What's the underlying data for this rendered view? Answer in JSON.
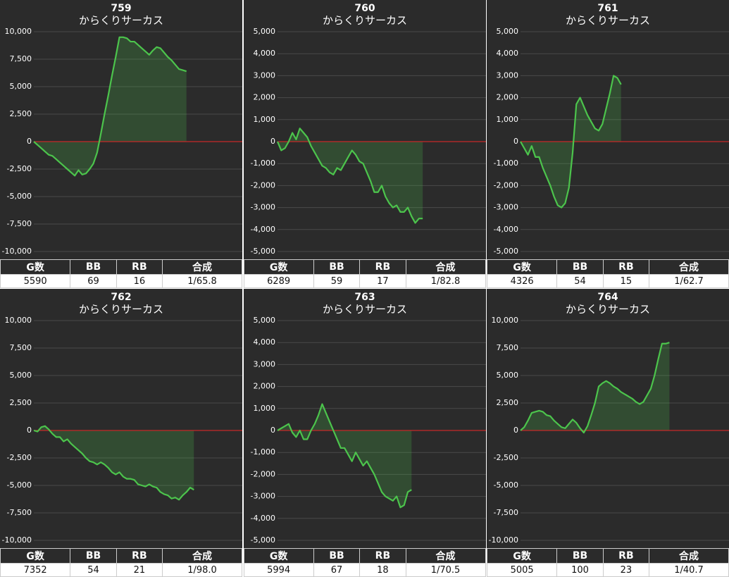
{
  "chart_data": [
    {
      "type": "line",
      "title": "759",
      "subtitle": "からくりサーカス",
      "color": "#4cc44c",
      "grid": true,
      "values": [
        0,
        -300,
        -600,
        -900,
        -1200,
        -1300,
        -1600,
        -1900,
        -2200,
        -2500,
        -2800,
        -3100,
        -2600,
        -3000,
        -2900,
        -2500,
        -2000,
        -1000,
        700,
        2500,
        4200,
        6000,
        7700,
        9500,
        9500,
        9400,
        9100,
        9100,
        8800,
        8500,
        8200,
        7900,
        8300,
        8600,
        8500,
        8100,
        7700,
        7400,
        7000,
        6600,
        6500,
        6400
      ],
      "ylim": [
        -10000,
        10000
      ],
      "yticks": [
        {
          "value": -10000,
          "label": "-10,000"
        },
        {
          "value": -7500,
          "label": "-7,500"
        },
        {
          "value": -5000,
          "label": "-5,000"
        },
        {
          "value": -2500,
          "label": "-2,500"
        },
        0,
        {
          "value": 2500,
          "label": "2,500"
        },
        {
          "value": 5000,
          "label": "5,000"
        },
        {
          "value": 7500,
          "label": "7,500"
        },
        {
          "value": 10000,
          "label": "10,000"
        }
      ]
    },
    {
      "type": "line",
      "title": "760",
      "subtitle": "からくりサーカス",
      "color": "#4cc44c",
      "grid": true,
      "values": [
        0,
        -400,
        -300,
        0,
        400,
        100,
        600,
        400,
        200,
        -200,
        -500,
        -800,
        -1100,
        -1200,
        -1400,
        -1500,
        -1200,
        -1300,
        -1000,
        -700,
        -400,
        -600,
        -900,
        -1000,
        -1400,
        -1800,
        -2300,
        -2300,
        -2000,
        -2500,
        -2800,
        -3000,
        -2900,
        -3200,
        -3200,
        -3000,
        -3400,
        -3700,
        -3500,
        -3500
      ],
      "ylim": [
        -5000,
        5000
      ],
      "yticks": [
        {
          "value": -5000,
          "label": "-5,000"
        },
        {
          "value": -4000,
          "label": "-4,000"
        },
        {
          "value": -3000,
          "label": "-3,000"
        },
        {
          "value": -2000,
          "label": "-2,000"
        },
        {
          "value": -1000,
          "label": "-1,000"
        },
        0,
        {
          "value": 1000,
          "label": "1,000"
        },
        {
          "value": 2000,
          "label": "2,000"
        },
        {
          "value": 3000,
          "label": "3,000"
        },
        {
          "value": 4000,
          "label": "4,000"
        },
        {
          "value": 5000,
          "label": "5,000"
        }
      ]
    },
    {
      "type": "line",
      "title": "761",
      "subtitle": "からくりサーカス",
      "color": "#4cc44c",
      "grid": true,
      "values": [
        0,
        -300,
        -600,
        -200,
        -700,
        -700,
        -1200,
        -1600,
        -2000,
        -2500,
        -2900,
        -3000,
        -2800,
        -2100,
        -500,
        1700,
        2000,
        1600,
        1200,
        900,
        600,
        500,
        800,
        1500,
        2200,
        3000,
        2900,
        2600
      ],
      "ylim": [
        -5000,
        5000
      ],
      "yticks": [
        {
          "value": -5000,
          "label": "-5,000"
        },
        {
          "value": -4000,
          "label": "-4,000"
        },
        {
          "value": -3000,
          "label": "-3,000"
        },
        {
          "value": -2000,
          "label": "-2,000"
        },
        {
          "value": -1000,
          "label": "-1,000"
        },
        0,
        {
          "value": 1000,
          "label": "1,000"
        },
        {
          "value": 2000,
          "label": "2,000"
        },
        {
          "value": 3000,
          "label": "3,000"
        },
        {
          "value": 4000,
          "label": "4,000"
        },
        {
          "value": 5000,
          "label": "5,000"
        }
      ]
    },
    {
      "type": "line",
      "title": "762",
      "subtitle": "からくりサーカス",
      "color": "#4cc44c",
      "grid": true,
      "values": [
        0,
        -100,
        300,
        400,
        100,
        -300,
        -600,
        -600,
        -1000,
        -800,
        -1200,
        -1500,
        -1800,
        -2100,
        -2500,
        -2800,
        -2900,
        -3100,
        -2900,
        -3100,
        -3400,
        -3800,
        -4000,
        -3800,
        -4200,
        -4400,
        -4400,
        -4500,
        -4900,
        -5000,
        -5100,
        -4900,
        -5100,
        -5200,
        -5600,
        -5800,
        -5900,
        -6200,
        -6100,
        -6300,
        -5900,
        -5600,
        -5200,
        -5400
      ],
      "ylim": [
        -10000,
        10000
      ],
      "yticks": [
        {
          "value": -10000,
          "label": "-10,000"
        },
        {
          "value": -7500,
          "label": "-7,500"
        },
        {
          "value": -5000,
          "label": "-5,000"
        },
        {
          "value": -2500,
          "label": "-2,500"
        },
        0,
        {
          "value": 2500,
          "label": "2,500"
        },
        {
          "value": 5000,
          "label": "5,000"
        },
        {
          "value": 7500,
          "label": "7,500"
        },
        {
          "value": 10000,
          "label": "10,000"
        }
      ]
    },
    {
      "type": "line",
      "title": "763",
      "subtitle": "からくりサーカス",
      "color": "#4cc44c",
      "grid": true,
      "values": [
        0,
        100,
        200,
        300,
        -100,
        -300,
        0,
        -400,
        -400,
        0,
        300,
        700,
        1200,
        800,
        400,
        0,
        -400,
        -800,
        -800,
        -1100,
        -1400,
        -1000,
        -1300,
        -1600,
        -1400,
        -1700,
        -2000,
        -2400,
        -2800,
        -3000,
        -3100,
        -3200,
        -3000,
        -3500,
        -3400,
        -2800,
        -2700
      ],
      "ylim": [
        -5000,
        5000
      ],
      "yticks": [
        {
          "value": -5000,
          "label": "-5,000"
        },
        {
          "value": -4000,
          "label": "-4,000"
        },
        {
          "value": -3000,
          "label": "-3,000"
        },
        {
          "value": -2000,
          "label": "-2,000"
        },
        {
          "value": -1000,
          "label": "-1,000"
        },
        0,
        {
          "value": 1000,
          "label": "1,000"
        },
        {
          "value": 2000,
          "label": "2,000"
        },
        {
          "value": 3000,
          "label": "3,000"
        },
        {
          "value": 4000,
          "label": "4,000"
        },
        {
          "value": 5000,
          "label": "5,000"
        }
      ]
    },
    {
      "type": "line",
      "title": "764",
      "subtitle": "からくりサーカス",
      "color": "#4cc44c",
      "grid": true,
      "values": [
        0,
        300,
        900,
        1600,
        1700,
        1800,
        1700,
        1400,
        1300,
        900,
        600,
        300,
        200,
        600,
        1000,
        700,
        200,
        -200,
        400,
        1400,
        2500,
        4000,
        4300,
        4500,
        4300,
        4000,
        3800,
        3500,
        3300,
        3100,
        2900,
        2600,
        2400,
        2600,
        3200,
        3800,
        5000,
        6500,
        7900,
        7900,
        8000
      ],
      "ylim": [
        -10000,
        10000
      ],
      "yticks": [
        {
          "value": -10000,
          "label": "-10,000"
        },
        {
          "value": -7500,
          "label": "-7,500"
        },
        {
          "value": -5000,
          "label": "-5,000"
        },
        {
          "value": -2500,
          "label": "-2,500"
        },
        0,
        {
          "value": 2500,
          "label": "2,500"
        },
        {
          "value": 5000,
          "label": "5,000"
        },
        {
          "value": 7500,
          "label": "7,500"
        },
        {
          "value": 10000,
          "label": "10,000"
        }
      ]
    }
  ],
  "tables": [
    {
      "header": [
        "G数",
        "BB",
        "RB",
        "合成"
      ],
      "row": [
        5590,
        69,
        16,
        "1/65.8"
      ]
    },
    {
      "header": [
        "G数",
        "BB",
        "RB",
        "合成"
      ],
      "row": [
        6289,
        59,
        17,
        "1/82.8"
      ]
    },
    {
      "header": [
        "G数",
        "BB",
        "RB",
        "合成"
      ],
      "row": [
        4326,
        54,
        15,
        "1/62.7"
      ]
    },
    {
      "header": [
        "G数",
        "BB",
        "RB",
        "合成"
      ],
      "row": [
        7352,
        54,
        21,
        "1/98.0"
      ]
    },
    {
      "header": [
        "G数",
        "BB",
        "RB",
        "合成"
      ],
      "row": [
        5994,
        67,
        18,
        "1/70.5"
      ]
    },
    {
      "header": [
        "G数",
        "BB",
        "RB",
        "合成"
      ],
      "row": [
        5005,
        100,
        23,
        "1/40.7"
      ]
    }
  ]
}
